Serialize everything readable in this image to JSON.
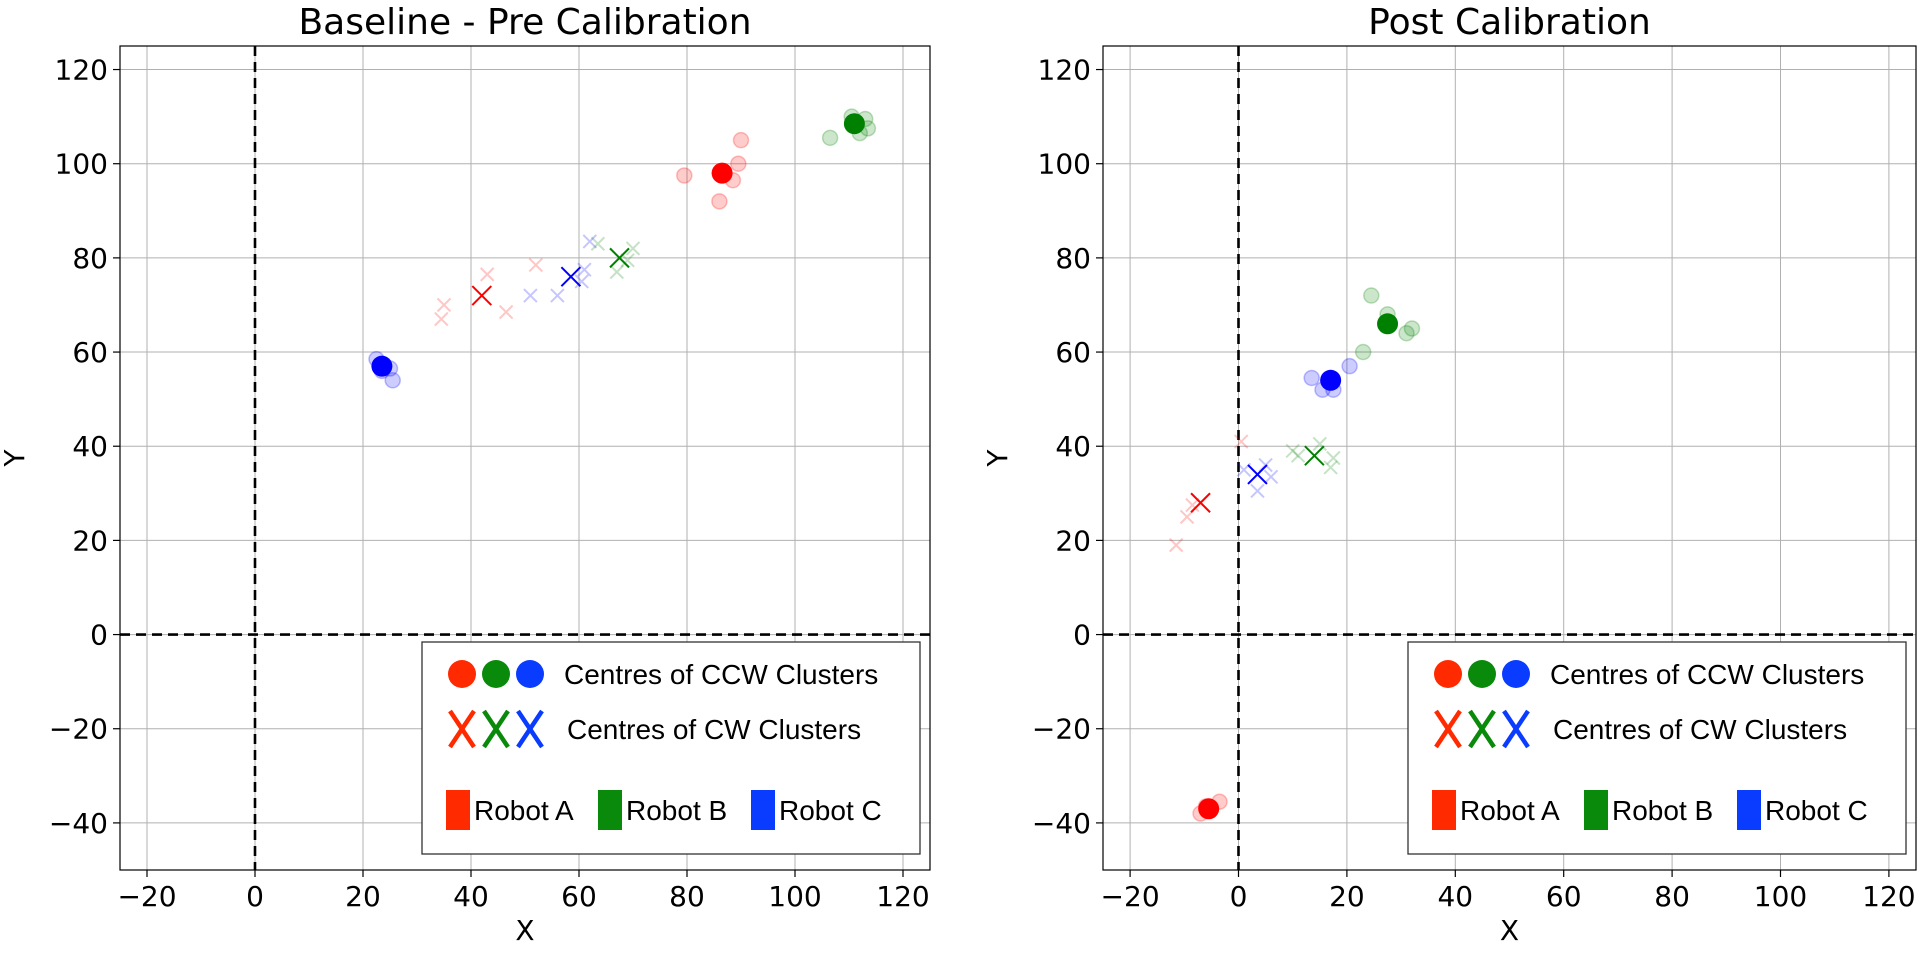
{
  "colors": {
    "robot_a": "#ff0000",
    "robot_b": "#008000",
    "robot_c": "#0000ff",
    "legend_a": "#ff2a00",
    "legend_b": "#0a8a0a",
    "legend_c": "#0a3cff",
    "grid": "#b0b0b0",
    "axis_line": "#000000"
  },
  "legend": {
    "ccw_label": "Centres of CCW Clusters",
    "cw_label": "Centres of CW Clusters",
    "robot_a": "Robot A",
    "robot_b": "Robot B",
    "robot_c": "Robot C"
  },
  "chart_data": [
    {
      "type": "scatter",
      "title": "Baseline - Pre Calibration",
      "xlabel": "X",
      "ylabel": "Y",
      "xlim": [
        -25,
        125
      ],
      "ylim": [
        -50,
        125
      ],
      "xticks": [
        -20,
        0,
        20,
        40,
        60,
        80,
        100,
        120
      ],
      "yticks": [
        -40,
        -20,
        0,
        20,
        40,
        60,
        80,
        100,
        120
      ],
      "grid": true,
      "reference_lines": {
        "x": 0,
        "y": 0,
        "style": "dashed"
      },
      "legend_position": "lower-right",
      "series": [
        {
          "robot": "a",
          "kind": "ccw_points",
          "marker": "circle",
          "points": [
            [
              79.5,
              97.5
            ],
            [
              86,
              92
            ],
            [
              88.5,
              96.5
            ],
            [
              89.5,
              100
            ],
            [
              90,
              105
            ]
          ]
        },
        {
          "robot": "a",
          "kind": "ccw_centre",
          "marker": "circle",
          "points": [
            [
              86.5,
              98
            ]
          ]
        },
        {
          "robot": "a",
          "kind": "cw_points",
          "marker": "x",
          "points": [
            [
              34.5,
              67
            ],
            [
              35,
              70
            ],
            [
              43,
              76.5
            ],
            [
              46.5,
              68.5
            ],
            [
              52,
              78.5
            ]
          ]
        },
        {
          "robot": "a",
          "kind": "cw_centre",
          "marker": "x",
          "points": [
            [
              42,
              72
            ]
          ]
        },
        {
          "robot": "b",
          "kind": "ccw_points",
          "marker": "circle",
          "points": [
            [
              106.5,
              105.5
            ],
            [
              110.5,
              110
            ],
            [
              113,
              109.5
            ],
            [
              113.5,
              107.5
            ],
            [
              112,
              106.5
            ]
          ]
        },
        {
          "robot": "b",
          "kind": "ccw_centre",
          "marker": "circle",
          "points": [
            [
              111,
              108.5
            ]
          ]
        },
        {
          "robot": "b",
          "kind": "cw_points",
          "marker": "x",
          "points": [
            [
              63.5,
              83
            ],
            [
              67,
              77
            ],
            [
              69,
              79.5
            ],
            [
              70,
              82
            ]
          ]
        },
        {
          "robot": "b",
          "kind": "cw_centre",
          "marker": "x",
          "points": [
            [
              67.5,
              80
            ]
          ]
        },
        {
          "robot": "c",
          "kind": "ccw_points",
          "marker": "circle",
          "points": [
            [
              22.5,
              58.5
            ],
            [
              23.5,
              56
            ],
            [
              25,
              56.5
            ],
            [
              25.5,
              54
            ]
          ]
        },
        {
          "robot": "c",
          "kind": "ccw_centre",
          "marker": "circle",
          "points": [
            [
              23.5,
              57
            ]
          ]
        },
        {
          "robot": "c",
          "kind": "cw_points",
          "marker": "x",
          "points": [
            [
              51,
              72
            ],
            [
              56,
              72
            ],
            [
              60.5,
              75
            ],
            [
              61,
              77.5
            ],
            [
              62,
              83.5
            ]
          ]
        },
        {
          "robot": "c",
          "kind": "cw_centre",
          "marker": "x",
          "points": [
            [
              58.5,
              76
            ]
          ]
        }
      ]
    },
    {
      "type": "scatter",
      "title": "Post Calibration",
      "xlabel": "X",
      "ylabel": "Y",
      "xlim": [
        -25,
        125
      ],
      "ylim": [
        -50,
        125
      ],
      "xticks": [
        -20,
        0,
        20,
        40,
        60,
        80,
        100,
        120
      ],
      "yticks": [
        -40,
        -20,
        0,
        20,
        40,
        60,
        80,
        100,
        120
      ],
      "grid": true,
      "reference_lines": {
        "x": 0,
        "y": 0,
        "style": "dashed"
      },
      "legend_position": "lower-right",
      "series": [
        {
          "robot": "a",
          "kind": "ccw_points",
          "marker": "circle",
          "points": [
            [
              -7,
              -38
            ],
            [
              -5.5,
              -37
            ],
            [
              -3.5,
              -35.5
            ],
            [
              -6,
              -36.5
            ]
          ]
        },
        {
          "robot": "a",
          "kind": "ccw_centre",
          "marker": "circle",
          "points": [
            [
              -5.5,
              -37
            ]
          ]
        },
        {
          "robot": "a",
          "kind": "cw_points",
          "marker": "x",
          "points": [
            [
              -11.5,
              19
            ],
            [
              -9.5,
              25
            ],
            [
              -8.5,
              27.5
            ],
            [
              0.5,
              41
            ]
          ]
        },
        {
          "robot": "a",
          "kind": "cw_centre",
          "marker": "x",
          "points": [
            [
              -7,
              28
            ]
          ]
        },
        {
          "robot": "b",
          "kind": "ccw_points",
          "marker": "circle",
          "points": [
            [
              23,
              60
            ],
            [
              24.5,
              72
            ],
            [
              27.5,
              68
            ],
            [
              31,
              64
            ],
            [
              32,
              65
            ]
          ]
        },
        {
          "robot": "b",
          "kind": "ccw_centre",
          "marker": "circle",
          "points": [
            [
              27.5,
              66
            ]
          ]
        },
        {
          "robot": "b",
          "kind": "cw_points",
          "marker": "x",
          "points": [
            [
              10,
              39
            ],
            [
              11,
              38
            ],
            [
              15,
              40.5
            ],
            [
              17,
              35.5
            ],
            [
              17.5,
              37.5
            ]
          ]
        },
        {
          "robot": "b",
          "kind": "cw_centre",
          "marker": "x",
          "points": [
            [
              14,
              38
            ]
          ]
        },
        {
          "robot": "c",
          "kind": "ccw_points",
          "marker": "circle",
          "points": [
            [
              13.5,
              54.5
            ],
            [
              15.5,
              52
            ],
            [
              17.5,
              52
            ],
            [
              20.5,
              57
            ]
          ]
        },
        {
          "robot": "c",
          "kind": "ccw_centre",
          "marker": "circle",
          "points": [
            [
              17,
              54
            ]
          ]
        },
        {
          "robot": "c",
          "kind": "cw_points",
          "marker": "x",
          "points": [
            [
              1,
              35
            ],
            [
              3.5,
              30.5
            ],
            [
              5,
              36
            ],
            [
              6,
              33.5
            ]
          ]
        },
        {
          "robot": "c",
          "kind": "cw_centre",
          "marker": "x",
          "points": [
            [
              3.5,
              34
            ]
          ]
        }
      ]
    }
  ]
}
